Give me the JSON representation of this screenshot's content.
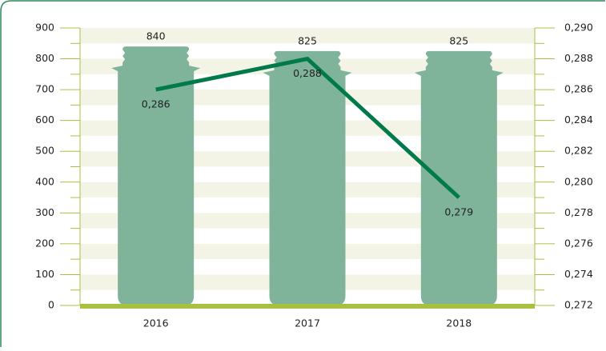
{
  "chart_data": {
    "type": "bar-line",
    "categories": [
      "2016",
      "2017",
      "2018"
    ],
    "series": [
      {
        "type": "bar",
        "color": "#7fb49a",
        "values": [
          840,
          825,
          825
        ]
      },
      {
        "type": "line",
        "axis": "y2",
        "color": "#007a4a",
        "values": [
          0.286,
          0.288,
          0.279
        ],
        "value_labels": [
          "0,286",
          "0,288",
          "0,279"
        ]
      }
    ],
    "ylim": [
      0,
      900
    ],
    "yticks": [
      0,
      100,
      200,
      300,
      400,
      500,
      600,
      700,
      800,
      900
    ],
    "y2lim": [
      0.272,
      0.29
    ],
    "y2ticks": [
      {
        "value": 0.272,
        "label": "0,272"
      },
      {
        "value": 0.274,
        "label": "0,274"
      },
      {
        "value": 0.276,
        "label": "0,276"
      },
      {
        "value": 0.278,
        "label": "0,278"
      },
      {
        "value": 0.28,
        "label": "0,280"
      },
      {
        "value": 0.282,
        "label": "0,282"
      },
      {
        "value": 0.284,
        "label": "0,284"
      },
      {
        "value": 0.286,
        "label": "0,286"
      },
      {
        "value": 0.288,
        "label": "0,288"
      },
      {
        "value": 0.29,
        "label": "0,290"
      }
    ],
    "axis_color": "#a8c040",
    "stripe_color": "#f3f4e6"
  }
}
